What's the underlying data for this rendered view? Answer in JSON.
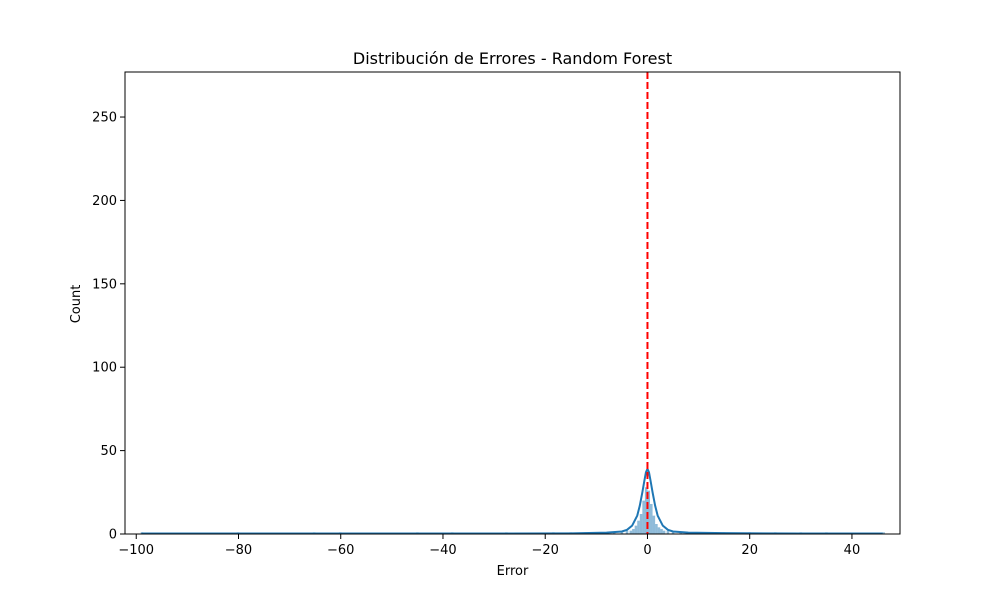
{
  "chart_data": {
    "type": "bar",
    "title": "Distribución de Errores - Random Forest",
    "xlabel": "Error",
    "ylabel": "Count",
    "xlim": [
      -102.2,
      49.4
    ],
    "ylim": [
      0,
      277
    ],
    "xticks": [
      -100,
      -80,
      -60,
      -40,
      -20,
      0,
      20,
      40
    ],
    "xtick_labels": [
      "−100",
      "−80",
      "−60",
      "−40",
      "−20",
      "0",
      "20",
      "40"
    ],
    "yticks": [
      0,
      50,
      100,
      150,
      200,
      250
    ],
    "ytick_labels": [
      "0",
      "50",
      "100",
      "150",
      "200",
      "250"
    ],
    "grid": false,
    "bar_color": "#1f77b4",
    "vline_color": "#ff0000",
    "series": [
      {
        "kind": "histogram",
        "bin_centers": [
          -98.9,
          -80.1,
          -65.2,
          -60.1,
          -45.0,
          -38.2,
          -27.6,
          -18.4,
          -15.0,
          -12.1,
          -10.0,
          -8.0,
          -6.5,
          -5.0,
          -4.0,
          -3.25,
          -2.75,
          -2.25,
          -1.75,
          -1.25,
          -0.75,
          -0.25,
          0.25,
          0.75,
          1.25,
          1.75,
          2.25,
          2.75,
          3.25,
          4.0,
          5.0,
          6.5,
          8.0,
          10.0,
          15.0,
          20.0,
          25.0,
          30.0,
          35.0,
          46.2
        ],
        "counts": [
          1,
          1,
          1,
          1,
          1,
          1,
          1,
          1,
          1,
          1,
          1,
          1,
          1,
          1,
          2,
          2,
          3,
          5,
          8,
          12,
          20,
          28,
          26,
          18,
          11,
          6,
          4,
          3,
          2,
          2,
          1,
          1,
          1,
          1,
          1,
          1,
          1,
          1,
          1,
          1
        ]
      },
      {
        "kind": "kde",
        "x": [
          -99,
          -60,
          -30,
          -15,
          -8,
          -5,
          -4,
          -3,
          -2,
          -1.5,
          -1,
          -0.6,
          -0.3,
          0,
          0.3,
          0.6,
          1,
          1.5,
          2,
          3,
          4,
          5,
          8,
          15,
          30,
          46
        ],
        "y": [
          0.3,
          0.3,
          0.3,
          0.4,
          0.8,
          1.5,
          2.5,
          5,
          11,
          17,
          25,
          32,
          37,
          39,
          37,
          32,
          25,
          17,
          11,
          5,
          2.5,
          1.5,
          0.8,
          0.5,
          0.3,
          0.3
        ]
      },
      {
        "kind": "vline",
        "x": 0
      }
    ]
  }
}
